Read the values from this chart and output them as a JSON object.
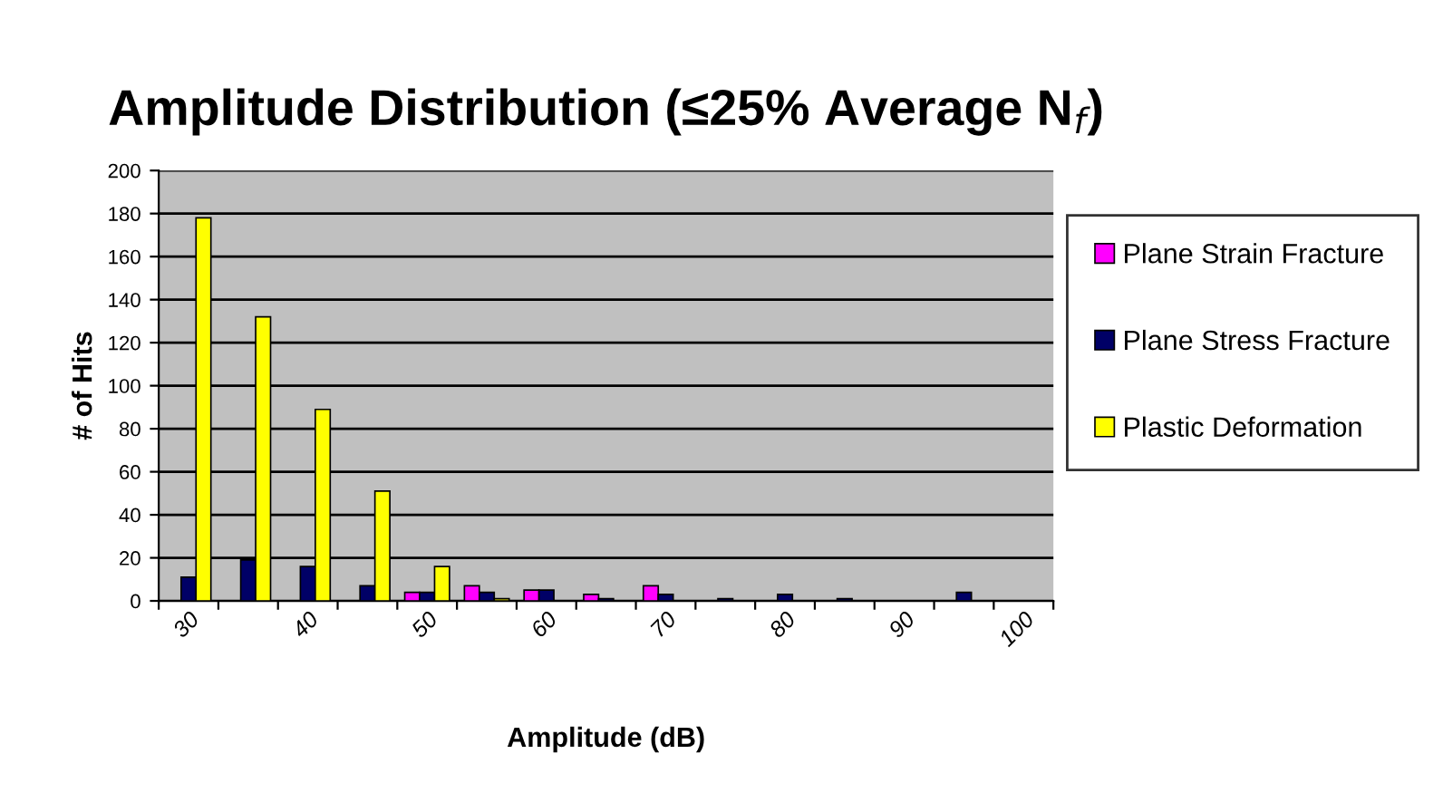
{
  "chart_data": {
    "type": "bar",
    "title": "Amplitude Distribution (≤25% Average N$_{f}$)",
    "xlabel": "Amplitude (dB)",
    "ylabel": "# of Hits",
    "categories": [
      "30",
      null,
      "40",
      null,
      "50",
      null,
      "60",
      null,
      "70",
      null,
      "80",
      null,
      "90",
      null,
      "100"
    ],
    "series": [
      {
        "name": "Plane Strain Fracture",
        "color": "#ff00ff",
        "values": [
          null,
          null,
          null,
          null,
          4,
          7,
          5,
          3,
          7,
          null,
          null,
          null,
          null,
          null,
          null
        ]
      },
      {
        "name": "Plane Stress Fracture",
        "color": "#000066",
        "values": [
          11,
          19,
          16,
          7,
          4,
          4,
          5,
          1,
          3,
          1,
          3,
          1,
          null,
          4,
          null
        ]
      },
      {
        "name": "Plastic Deformation",
        "color": "#ffff00",
        "values": [
          178,
          132,
          89,
          51,
          16,
          1,
          null,
          null,
          null,
          null,
          null,
          null,
          null,
          null,
          null
        ]
      }
    ],
    "ylim": [
      0,
      200
    ],
    "yticks": [
      0,
      20,
      40,
      60,
      80,
      100,
      120,
      140,
      160,
      180,
      200
    ],
    "grid": "y",
    "legend": "right"
  }
}
